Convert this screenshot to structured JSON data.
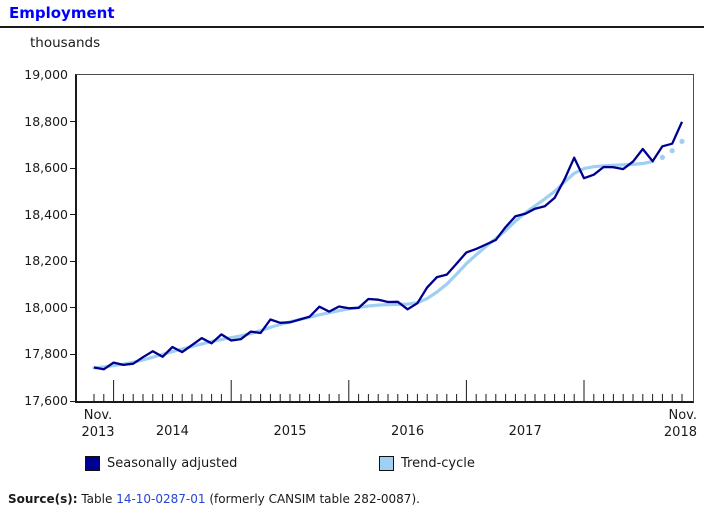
{
  "title": "Employment",
  "units_label": "thousands",
  "colors": {
    "title_blue": "#0000ff",
    "seasonally_adjusted": "#000090",
    "trend_cycle": "#9fd0f2",
    "axis": "#1a1a1a",
    "link_blue": "#2646d4"
  },
  "chart_data": {
    "type": "line",
    "title": "Employment",
    "ylabel": "thousands",
    "ylim": [
      17600,
      19000
    ],
    "yticks": [
      17600,
      17800,
      18000,
      18200,
      18400,
      18600,
      18800,
      19000
    ],
    "ytick_labels": [
      "17,600",
      "17,800",
      "18,000",
      "18,200",
      "18,400",
      "18,600",
      "18,800",
      "19,000"
    ],
    "grid": "off",
    "legend_position": "bottom",
    "months": [
      "2013-11",
      "2013-12",
      "2014-01",
      "2014-02",
      "2014-03",
      "2014-04",
      "2014-05",
      "2014-06",
      "2014-07",
      "2014-08",
      "2014-09",
      "2014-10",
      "2014-11",
      "2014-12",
      "2015-01",
      "2015-02",
      "2015-03",
      "2015-04",
      "2015-05",
      "2015-06",
      "2015-07",
      "2015-08",
      "2015-09",
      "2015-10",
      "2015-11",
      "2015-12",
      "2016-01",
      "2016-02",
      "2016-03",
      "2016-04",
      "2016-05",
      "2016-06",
      "2016-07",
      "2016-08",
      "2016-09",
      "2016-10",
      "2016-11",
      "2016-12",
      "2017-01",
      "2017-02",
      "2017-03",
      "2017-04",
      "2017-05",
      "2017-06",
      "2017-07",
      "2017-08",
      "2017-09",
      "2017-10",
      "2017-11",
      "2017-12",
      "2018-01",
      "2018-02",
      "2018-03",
      "2018-04",
      "2018-05",
      "2018-06",
      "2018-07",
      "2018-08",
      "2018-09",
      "2018-10",
      "2018-11"
    ],
    "series": [
      {
        "name": "Seasonally adjusted",
        "color": "#000090",
        "values": [
          17744,
          17736,
          17765,
          17755,
          17760,
          17788,
          17814,
          17790,
          17832,
          17810,
          17840,
          17870,
          17848,
          17886,
          17860,
          17866,
          17898,
          17892,
          17950,
          17936,
          17938,
          17950,
          17962,
          18005,
          17984,
          18006,
          17998,
          18000,
          18038,
          18035,
          18025,
          18026,
          17994,
          18020,
          18088,
          18132,
          18143,
          18190,
          18238,
          18253,
          18272,
          18292,
          18347,
          18393,
          18404,
          18426,
          18436,
          18472,
          18551,
          18645,
          18557,
          18572,
          18605,
          18604,
          18596,
          18628,
          18682,
          18630,
          18694,
          18705,
          18799
        ]
      },
      {
        "name": "Trend-cycle",
        "color": "#9fd0f2",
        "dotted_tail_points": 3,
        "values": [
          17742,
          17746,
          17752,
          17758,
          17766,
          17776,
          17788,
          17800,
          17812,
          17823,
          17834,
          17845,
          17855,
          17864,
          17872,
          17880,
          17890,
          17902,
          17916,
          17929,
          17940,
          17950,
          17960,
          17970,
          17979,
          17988,
          17996,
          18002,
          18008,
          18012,
          18014,
          18015,
          18016,
          18022,
          18040,
          18068,
          18102,
          18145,
          18190,
          18228,
          18264,
          18298,
          18332,
          18372,
          18408,
          18438,
          18468,
          18500,
          18540,
          18578,
          18598,
          18606,
          18610,
          18612,
          18614,
          18616,
          18620,
          18628,
          18646,
          18675,
          18715
        ]
      }
    ],
    "x_year_labels": [
      "2014",
      "2015",
      "2016",
      "2017"
    ],
    "x_edge_labels": [
      {
        "line1": "Nov.",
        "line2": "2013"
      },
      {
        "line1": "Nov.",
        "line2": "2018"
      }
    ]
  },
  "legend": [
    {
      "label": "Seasonally adjusted"
    },
    {
      "label": "Trend-cycle"
    }
  ],
  "source": {
    "prefix": "Source(s):",
    "pre_link": " Table ",
    "link_text": "14-10-0287-01",
    "post_link": " (formerly CANSIM table 282-0087)."
  }
}
